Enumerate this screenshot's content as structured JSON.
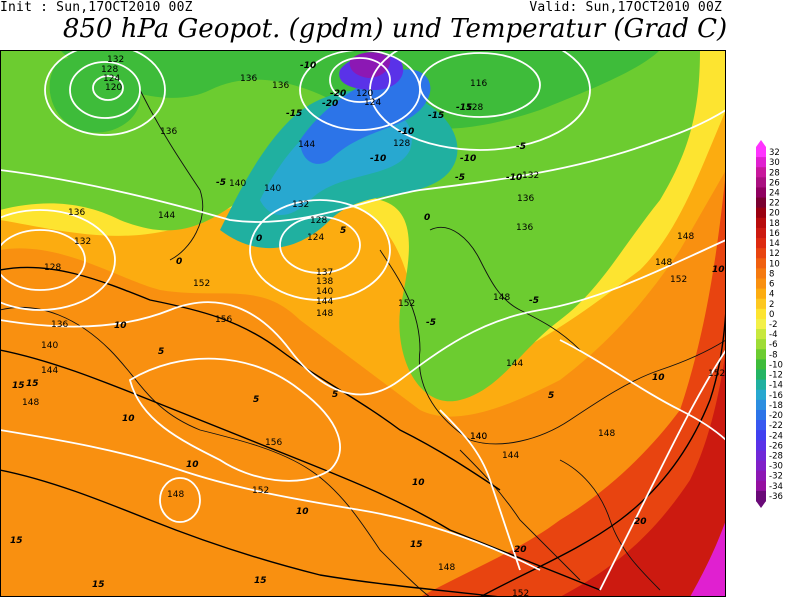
{
  "header": {
    "init_label": "Init : Sun,17OCT2010 00Z",
    "valid_label": "Valid: Sun,17OCT2010 00Z",
    "title": "850 hPa Geopot. (gpdm) und Temperatur (Grad C)"
  },
  "legend": {
    "levels": [
      32,
      30,
      28,
      26,
      24,
      22,
      20,
      18,
      16,
      14,
      12,
      10,
      8,
      6,
      4,
      2,
      0,
      -2,
      -4,
      -6,
      -8,
      -10,
      -12,
      -14,
      -16,
      -18,
      -20,
      -22,
      -24,
      -26,
      -28,
      -30,
      -32,
      -34,
      -36
    ],
    "colors": [
      "#ff33ff",
      "#e020d0",
      "#c8189c",
      "#aa1080",
      "#900060",
      "#7a0030",
      "#9a0010",
      "#b80c0c",
      "#cc1a10",
      "#dd2a10",
      "#e84410",
      "#f06010",
      "#f57a10",
      "#f99010",
      "#fcac10",
      "#fdc820",
      "#fde430",
      "#f3f048",
      "#c8e83e",
      "#9edc36",
      "#6ccc30",
      "#3ebc3a",
      "#24b464",
      "#20b0a0",
      "#28a8d0",
      "#2c8ee0",
      "#2c74e8",
      "#3858f0",
      "#4040f0",
      "#5a32e8",
      "#7028d8",
      "#8020c8",
      "#8c18b4",
      "#9410a0",
      "#6a0a78"
    ]
  },
  "map": {
    "geopotential_labels": [
      "132",
      "128",
      "124",
      "120",
      "136",
      "136",
      "136",
      "124",
      "120",
      "116",
      "128",
      "128",
      "132",
      "144",
      "140",
      "136",
      "144",
      "140",
      "132",
      "136",
      "128",
      "124",
      "132",
      "128",
      "152",
      "140",
      "144",
      "136",
      "137",
      "138",
      "140",
      "144",
      "148",
      "152",
      "148",
      "156",
      "140",
      "144",
      "136",
      "148",
      "148",
      "152",
      "148",
      "156",
      "140",
      "144",
      "148",
      "152",
      "148",
      "148",
      "152",
      "152"
    ],
    "temperature_labels": [
      "-10",
      "-20",
      "-15",
      "-20",
      "-15",
      "-10",
      "-15",
      "-10",
      "-5",
      "-5",
      "-10",
      "-10",
      "-5",
      "-5",
      "-5",
      "0",
      "0",
      "0",
      "5",
      "5",
      "10",
      "15",
      "15",
      "10",
      "5",
      "5",
      "10",
      "10",
      "10",
      "15",
      "15",
      "15",
      "20",
      "20",
      "10",
      "10",
      "15",
      "5"
    ]
  }
}
